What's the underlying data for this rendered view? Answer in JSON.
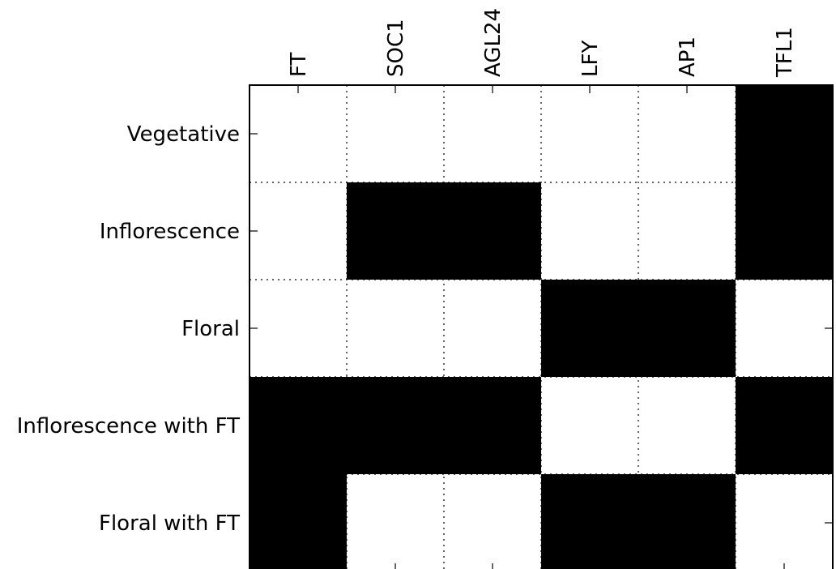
{
  "chart_data": {
    "type": "heatmap",
    "title": "",
    "xlabel": "",
    "ylabel": "",
    "x_labels": [
      "FT",
      "SOC1",
      "AGL24",
      "LFY",
      "AP1",
      "TFL1"
    ],
    "y_labels": [
      "Vegetative",
      "Inflorescence",
      "Floral",
      "Inflorescence with FT",
      "Floral with FT"
    ],
    "values": [
      [
        0,
        0,
        0,
        0,
        0,
        1
      ],
      [
        0,
        1,
        1,
        0,
        0,
        1
      ],
      [
        0,
        0,
        0,
        1,
        1,
        0
      ],
      [
        1,
        1,
        1,
        0,
        0,
        1
      ],
      [
        1,
        0,
        0,
        1,
        1,
        0
      ]
    ],
    "value_range": [
      0,
      1
    ],
    "colors": {
      "on": "#000000",
      "off": "#ffffff",
      "grid": "#000000"
    },
    "x_tick_position": "top",
    "grid": true,
    "grid_style": "dotted",
    "legend": "none"
  }
}
